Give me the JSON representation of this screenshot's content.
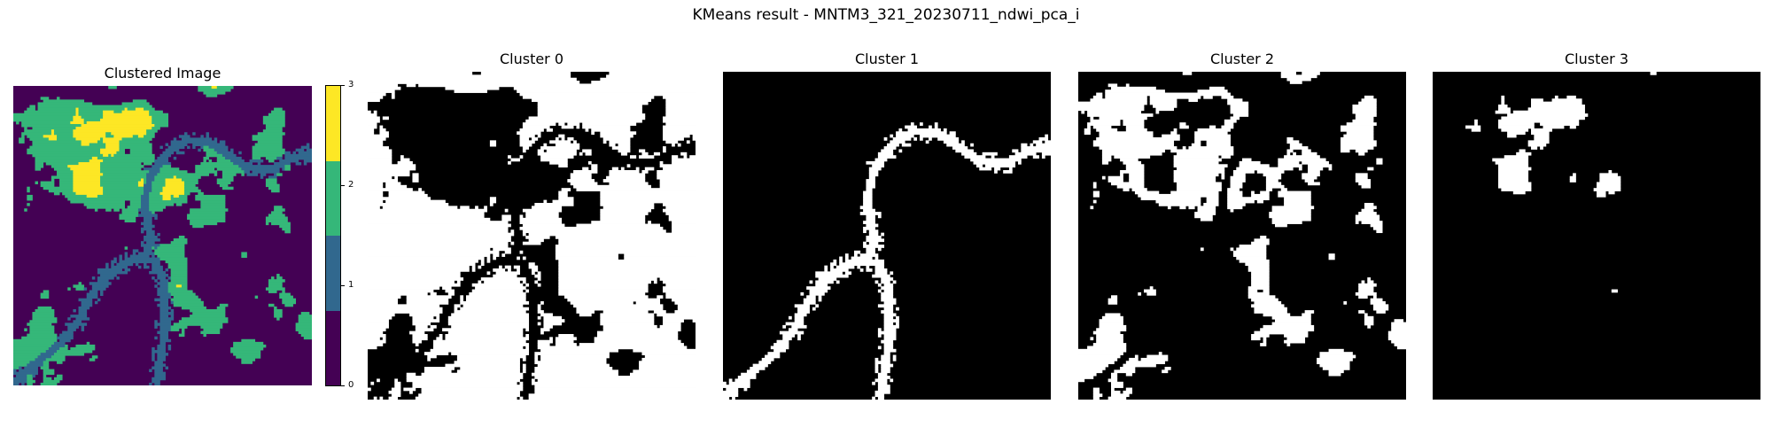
{
  "suptitle": "KMeans result - MNTM3_321_20230711_ndwi_pca_i",
  "colors": {
    "cluster_0": "#440154",
    "cluster_1": "#31688e",
    "cluster_2": "#35b779",
    "cluster_3": "#fde725",
    "mask_on": "#ffffff",
    "mask_off": "#000000"
  },
  "chart_data": [
    {
      "type": "heatmap",
      "title": "Clustered Image",
      "colormap": "viridis",
      "n_clusters": 4,
      "colorbar": {
        "ticks": [
          "0",
          "1",
          "2",
          "3"
        ],
        "range": [
          0,
          3
        ]
      },
      "axes": "off"
    },
    {
      "type": "heatmap",
      "title": "Cluster 0",
      "cluster": 0,
      "mask": "binary",
      "axes": "off"
    },
    {
      "type": "heatmap",
      "title": "Cluster 1",
      "cluster": 1,
      "mask": "binary",
      "axes": "off"
    },
    {
      "type": "heatmap",
      "title": "Cluster 2",
      "cluster": 2,
      "mask": "binary",
      "axes": "off"
    },
    {
      "type": "heatmap",
      "title": "Cluster 3",
      "cluster": 3,
      "mask": "binary",
      "axes": "off"
    }
  ]
}
